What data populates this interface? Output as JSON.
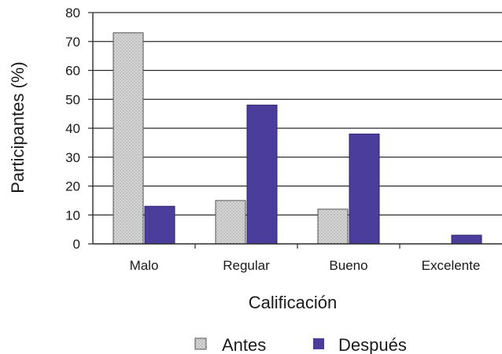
{
  "chart_data": {
    "type": "bar",
    "categories": [
      "Malo",
      "Regular",
      "Bueno",
      "Excelente"
    ],
    "series": [
      {
        "name": "Antes",
        "values": [
          73,
          15,
          12,
          0
        ],
        "color": "#d4d4d4"
      },
      {
        "name": "Después",
        "values": [
          13,
          48,
          38,
          3
        ],
        "color": "#4a3d9c"
      }
    ],
    "xlabel": "Calificación",
    "ylabel": "Participantes (%)",
    "ylim": [
      0,
      80
    ],
    "yticks": [
      0,
      10,
      20,
      30,
      40,
      50,
      60,
      70,
      80
    ],
    "grid": true,
    "legend_position": "bottom"
  }
}
